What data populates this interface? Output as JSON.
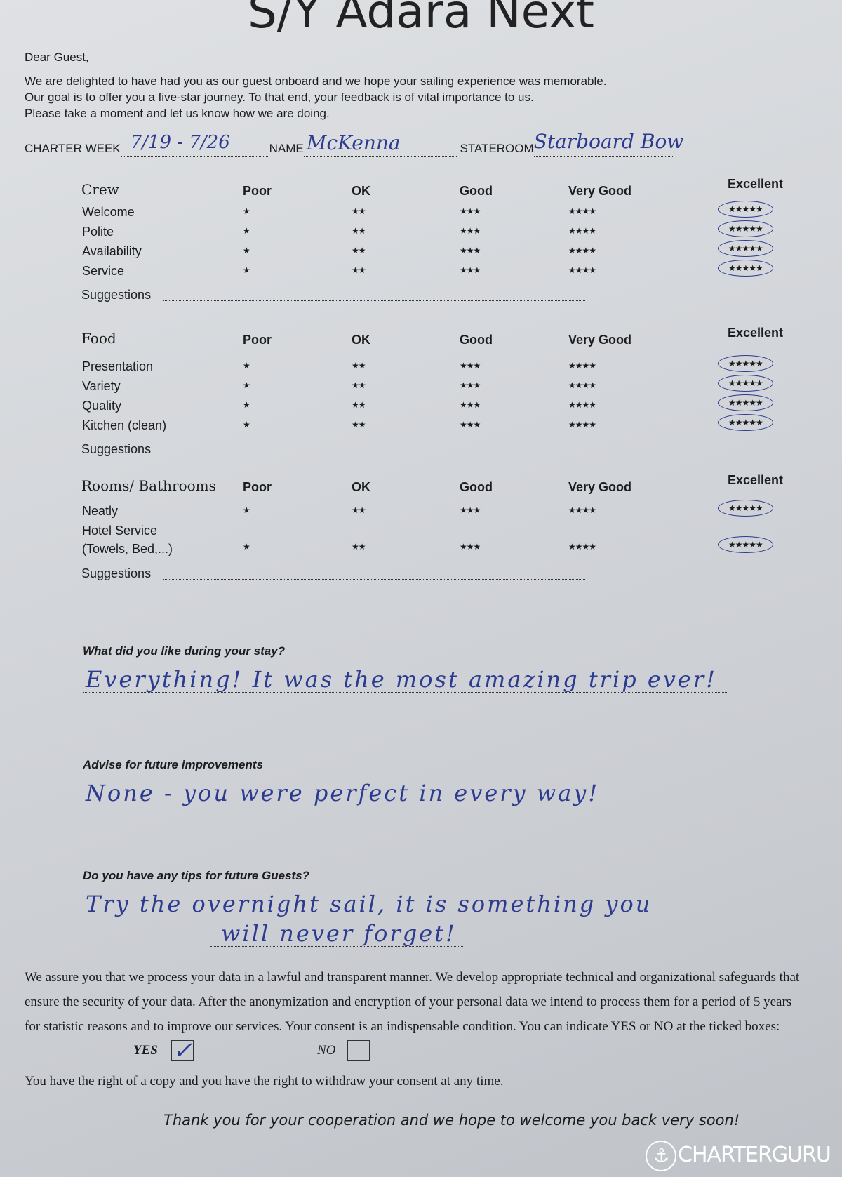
{
  "title": "S/Y Adara Next",
  "greeting": "Dear Guest,",
  "intro": [
    "We are delighted to have had you as our guest onboard and we hope your sailing experience was memorable.",
    "Our goal is to offer you a five-star journey. To that end, your feedback is of vital importance to us.",
    "Please take a moment and let us know how we are doing."
  ],
  "fields": {
    "charter_week_label": "CHARTER WEEK",
    "charter_week_value": "7/19 - 7/26",
    "name_label": "NAME",
    "name_value": "McKenna",
    "stateroom_label": "STATEROOM",
    "stateroom_value": "Starboard Bow"
  },
  "rating_columns": [
    {
      "label": "Poor",
      "stars": "★"
    },
    {
      "label": "OK",
      "stars": "★★"
    },
    {
      "label": "Good",
      "stars": "★★★"
    },
    {
      "label": "Very Good",
      "stars": "★★★★"
    },
    {
      "label": "Excellent",
      "stars": "★★★★★"
    }
  ],
  "suggestions_label": "Suggestions",
  "sections": [
    {
      "title": "Crew",
      "rows": [
        {
          "label": "Welcome",
          "selected": "Excellent"
        },
        {
          "label": "Polite",
          "selected": "Excellent"
        },
        {
          "label": "Availability",
          "selected": "Excellent"
        },
        {
          "label": "Service",
          "selected": "Excellent"
        }
      ]
    },
    {
      "title": "Food",
      "rows": [
        {
          "label": "Presentation",
          "selected": "Excellent"
        },
        {
          "label": "Variety",
          "selected": "Excellent"
        },
        {
          "label": "Quality",
          "selected": "Excellent"
        },
        {
          "label": "Kitchen (clean)",
          "selected": "Excellent"
        }
      ]
    },
    {
      "title": "Rooms/ Bathrooms",
      "rows": [
        {
          "label": "Neatly",
          "selected": "Excellent"
        },
        {
          "label": "Hotel Service",
          "label2": "(Towels, Bed,...)",
          "selected": "Excellent"
        }
      ]
    }
  ],
  "questions": [
    {
      "q": "What did you like during your stay?",
      "a": [
        "Everything! It was the most amazing trip ever!"
      ]
    },
    {
      "q": "Advise for future improvements",
      "a": [
        "None - you were perfect in every way!"
      ]
    },
    {
      "q": "Do you have any tips for future Guests?",
      "a": [
        "Try the overnight sail, it is something you",
        "will never forget!"
      ]
    }
  ],
  "privacy": [
    "We assure you that we process your data in a lawful and transparent manner. We develop appropriate technical and organizational safeguards that",
    "ensure the security of your data. After the anonymization and encryption of your personal data we intend to process them for a period of 5 years",
    "for statistic reasons and to improve our services. Your consent is an indispensable condition. You can indicate YES or NO at the ticked boxes:"
  ],
  "consent": {
    "yes_label": "YES",
    "no_label": "NO",
    "yes_checked": true,
    "no_checked": false,
    "check_mark": "✓"
  },
  "rights": "You have the right of a copy and you have the right to withdraw your consent at any time.",
  "thanks": "Thank you for your cooperation and we hope to welcome you back very soon!",
  "watermark": "CHARTERGURU",
  "colors": {
    "ink": "#2c3b8f",
    "paper": "#d5d8dc"
  }
}
